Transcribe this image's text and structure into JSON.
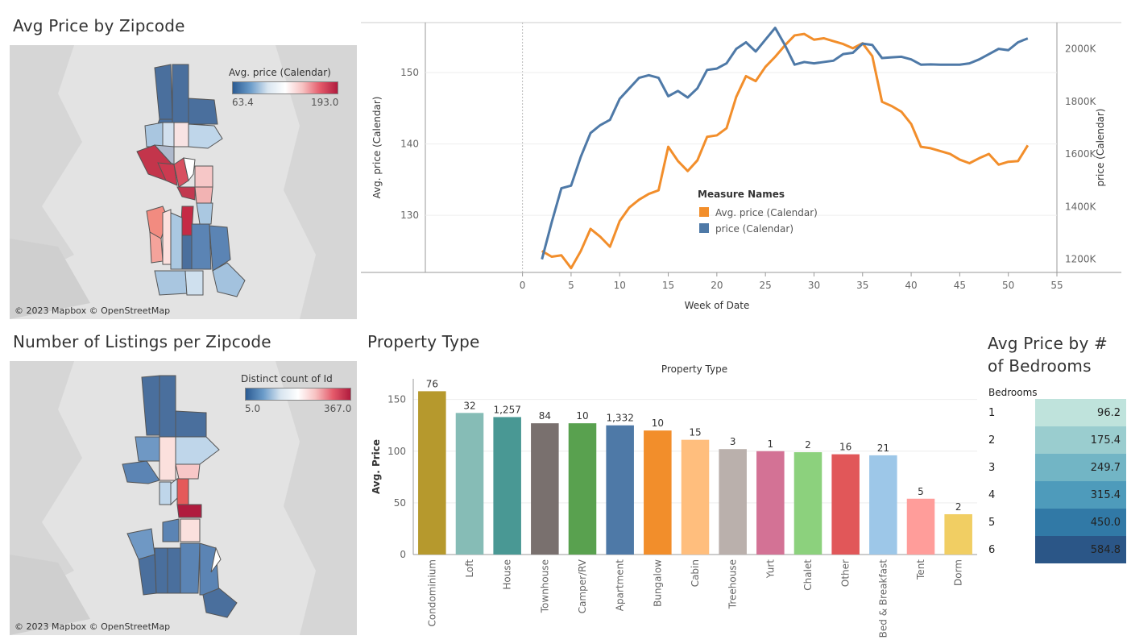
{
  "titles": {
    "map_price": "Avg Price by Zipcode",
    "map_count": "Number of Listings per Zipcode",
    "property": "Property Type",
    "bedrooms": "Avg Price by # of Bedrooms"
  },
  "maps": {
    "price": {
      "legend_title": "Avg. price (Calendar)",
      "legend_min": "63.4",
      "legend_max": "193.0",
      "attribution": "© 2023 Mapbox © OpenStreetMap"
    },
    "count": {
      "legend_title": "Distinct count of Id",
      "legend_min": "5.0",
      "legend_max": "367.0",
      "attribution": "© 2023 Mapbox © OpenStreetMap"
    }
  },
  "colors": {
    "orange": "#f28e2b",
    "blue": "#4e79a7",
    "map_bg": "#e3e3e3"
  },
  "chart_data": [
    {
      "type": "line",
      "id": "weekly",
      "xlabel": "Week of Date",
      "ylabel_left": "Avg. price (Calendar)",
      "ylabel_right": "price (Calendar)",
      "xlim": [
        -10,
        55
      ],
      "ylim_left": [
        122,
        157
      ],
      "ylim_right": [
        1150000,
        2100000
      ],
      "x_ticks": [
        "0",
        "5",
        "10",
        "15",
        "20",
        "25",
        "30",
        "35",
        "40",
        "45",
        "50",
        "55"
      ],
      "y_ticks_left": [
        "130",
        "140",
        "150"
      ],
      "y_ticks_right": [
        "1200K",
        "1400K",
        "1600K",
        "1800K",
        "2000K"
      ],
      "legend_title": "Measure Names",
      "grid": true,
      "x": [
        2,
        3,
        4,
        5,
        6,
        7,
        8,
        9,
        10,
        11,
        12,
        13,
        14,
        15,
        16,
        17,
        18,
        19,
        20,
        21,
        22,
        23,
        24,
        25,
        26,
        27,
        28,
        29,
        30,
        31,
        32,
        33,
        34,
        35,
        36,
        37,
        38,
        39,
        40,
        41,
        42,
        43,
        44,
        45,
        46,
        47,
        48,
        49,
        50,
        51,
        52
      ],
      "series": [
        {
          "name": "Avg. price (Calendar)",
          "axis": "left",
          "color": "#f28e2b",
          "values": [
            125,
            124.2,
            124.4,
            122.6,
            125,
            128.1,
            127,
            125.6,
            129.2,
            131.1,
            132.2,
            133,
            133.5,
            139.6,
            137.6,
            136.2,
            137.7,
            141,
            141.2,
            142.2,
            146.6,
            149.5,
            148.8,
            150.8,
            152.2,
            153.8,
            155.2,
            155.4,
            154.6,
            154.8,
            154.4,
            154,
            153.4,
            154.1,
            152.3,
            145.9,
            145.3,
            144.5,
            142.8,
            139.6,
            139.4,
            139,
            138.6,
            137.8,
            137.3,
            138,
            138.6,
            137.1,
            137.5,
            137.6,
            139.8
          ]
        },
        {
          "name": "price (Calendar)",
          "axis": "right",
          "color": "#4e79a7",
          "values": [
            1200000,
            1340000,
            1470000,
            1480000,
            1590000,
            1680000,
            1710000,
            1730000,
            1810000,
            1850000,
            1890000,
            1900000,
            1890000,
            1820000,
            1840000,
            1815000,
            1850000,
            1920000,
            1925000,
            1945000,
            2000000,
            2025000,
            1990000,
            2035000,
            2080000,
            2015000,
            1940000,
            1950000,
            1945000,
            1950000,
            1955000,
            1980000,
            1985000,
            2020000,
            2015000,
            1965000,
            1968000,
            1970000,
            1960000,
            1940000,
            1941000,
            1940000,
            1940000,
            1940000,
            1945000,
            1960000,
            1980000,
            2000000,
            1995000,
            2025000,
            2040000
          ]
        }
      ]
    },
    {
      "type": "bar",
      "id": "property",
      "title": "Property Type",
      "ylabel": "Avg. Price",
      "ylim": [
        0,
        170
      ],
      "y_ticks": [
        "0",
        "50",
        "100",
        "150"
      ],
      "categories": [
        "Condominium",
        "Loft",
        "House",
        "Townhouse",
        "Camper/RV",
        "Apartment",
        "Bungalow",
        "Cabin",
        "Treehouse",
        "Yurt",
        "Chalet",
        "Other",
        "Bed & Breakfast",
        "Tent",
        "Dorm"
      ],
      "values": [
        158,
        137,
        133,
        127,
        127,
        125,
        120,
        111,
        102,
        100,
        99,
        97,
        96,
        54,
        39
      ],
      "labels": [
        "76",
        "32",
        "1,257",
        "84",
        "10",
        "1,332",
        "10",
        "15",
        "3",
        "1",
        "2",
        "16",
        "21",
        "5",
        "2"
      ],
      "colors": [
        "#b6992d",
        "#86bcb6",
        "#499894",
        "#79706e",
        "#59a14f",
        "#4e79a7",
        "#f28e2b",
        "#ffbe7d",
        "#bab0ac",
        "#d37295",
        "#8cd17d",
        "#e15759",
        "#9dc7e8",
        "#ff9d9a",
        "#f1ce63"
      ]
    },
    {
      "type": "heatmap",
      "id": "bedrooms",
      "header": "Bedrooms",
      "rows": [
        "1",
        "2",
        "3",
        "4",
        "5",
        "6"
      ],
      "values": [
        96.2,
        175.4,
        249.7,
        315.4,
        450.0,
        584.8
      ],
      "labels": [
        "96.2",
        "175.4",
        "249.7",
        "315.4",
        "450.0",
        "584.8"
      ],
      "colors": [
        "#bfe3dc",
        "#9acdcf",
        "#72b5c5",
        "#4e9bbb",
        "#3179a6",
        "#2b5687"
      ]
    }
  ]
}
